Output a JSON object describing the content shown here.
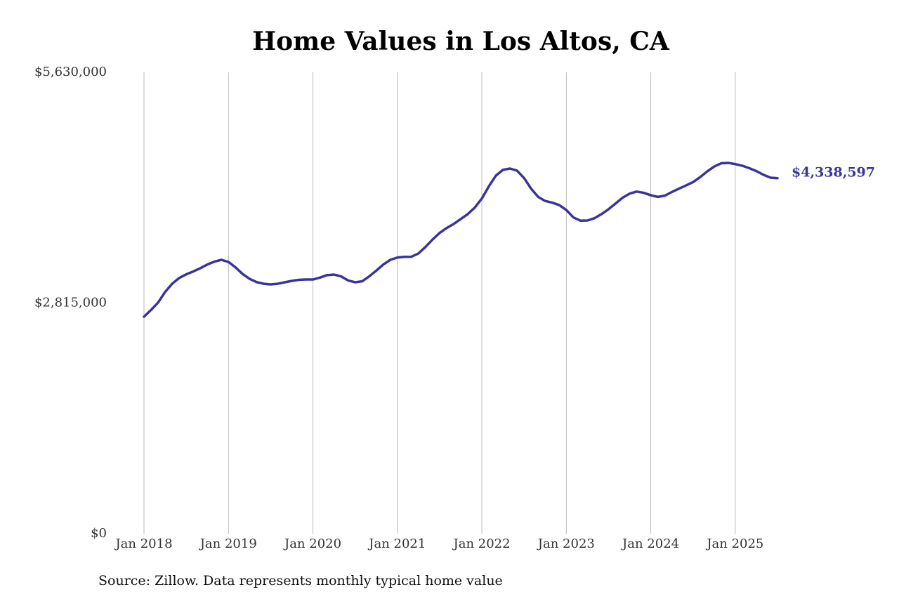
{
  "chart_data": {
    "type": "line",
    "title": "Home Values in Los Altos, CA",
    "source": "Source: Zillow. Data represents monthly typical home value",
    "x": [
      "2018-01",
      "2018-02",
      "2018-03",
      "2018-04",
      "2018-05",
      "2018-06",
      "2018-07",
      "2018-08",
      "2018-09",
      "2018-10",
      "2018-11",
      "2018-12",
      "2019-01",
      "2019-02",
      "2019-03",
      "2019-04",
      "2019-05",
      "2019-06",
      "2019-07",
      "2019-08",
      "2019-09",
      "2019-10",
      "2019-11",
      "2019-12",
      "2020-01",
      "2020-02",
      "2020-03",
      "2020-04",
      "2020-05",
      "2020-06",
      "2020-07",
      "2020-08",
      "2020-09",
      "2020-10",
      "2020-11",
      "2020-12",
      "2021-01",
      "2021-02",
      "2021-03",
      "2021-04",
      "2021-05",
      "2021-06",
      "2021-07",
      "2021-08",
      "2021-09",
      "2021-10",
      "2021-11",
      "2021-12",
      "2022-01",
      "2022-02",
      "2022-03",
      "2022-04",
      "2022-05",
      "2022-06",
      "2022-07",
      "2022-08",
      "2022-09",
      "2022-10",
      "2022-11",
      "2022-12",
      "2023-01",
      "2023-02",
      "2023-03",
      "2023-04",
      "2023-05",
      "2023-06",
      "2023-07",
      "2023-08",
      "2023-09",
      "2023-10",
      "2023-11",
      "2023-12",
      "2024-01",
      "2024-02",
      "2024-03",
      "2024-04",
      "2024-05",
      "2024-06",
      "2024-07",
      "2024-08",
      "2024-09",
      "2024-10",
      "2024-11",
      "2024-12",
      "2025-01",
      "2025-02",
      "2025-03",
      "2025-04",
      "2025-05",
      "2025-06",
      "2025-07"
    ],
    "series": [
      {
        "color": "#3a3399",
        "values": [
          2648000,
          2730000,
          2820000,
          2950000,
          3050000,
          3120000,
          3165000,
          3200000,
          3240000,
          3285000,
          3320000,
          3342000,
          3316000,
          3250000,
          3170000,
          3110000,
          3070000,
          3050000,
          3042000,
          3050000,
          3068000,
          3085000,
          3098000,
          3102000,
          3102000,
          3125000,
          3155000,
          3162000,
          3140000,
          3090000,
          3068000,
          3080000,
          3140000,
          3210000,
          3285000,
          3342000,
          3370000,
          3378000,
          3380000,
          3420000,
          3500000,
          3590000,
          3670000,
          3730000,
          3780000,
          3840000,
          3900000,
          3980000,
          4090000,
          4240000,
          4370000,
          4440000,
          4456000,
          4430000,
          4340000,
          4210000,
          4110000,
          4060000,
          4040000,
          4010000,
          3950000,
          3860000,
          3820000,
          3822000,
          3850000,
          3900000,
          3960000,
          4030000,
          4100000,
          4150000,
          4175000,
          4160000,
          4130000,
          4110000,
          4125000,
          4170000,
          4210000,
          4250000,
          4290000,
          4350000,
          4420000,
          4480000,
          4520000,
          4525000,
          4510000,
          4490000,
          4460000,
          4425000,
          4380000,
          4345000,
          4338597
        ],
        "value_labels": [
          null,
          null,
          null,
          null,
          null,
          null,
          null,
          null,
          null,
          null,
          null,
          null,
          null,
          null,
          null,
          null,
          null,
          null,
          null,
          null,
          null,
          null,
          null,
          null,
          null,
          null,
          null,
          null,
          null,
          null,
          null,
          null,
          null,
          null,
          null,
          null,
          null,
          null,
          null,
          null,
          null,
          null,
          null,
          null,
          null,
          null,
          null,
          null,
          null,
          null,
          null,
          null,
          null,
          null,
          null,
          null,
          null,
          null,
          null,
          null,
          null,
          null,
          null,
          null,
          null,
          null,
          null,
          null,
          null,
          null,
          null,
          null,
          null,
          null,
          null,
          null,
          null,
          null,
          null,
          null,
          null,
          null,
          null,
          null,
          null,
          null,
          null,
          null,
          null,
          null,
          "$4,338,597"
        ]
      }
    ],
    "xlim": [
      "2018-01",
      "2025-07"
    ],
    "xticks": [
      {
        "value": "2018-01",
        "label": "Jan 2018"
      },
      {
        "value": "2019-01",
        "label": "Jan 2019"
      },
      {
        "value": "2020-01",
        "label": "Jan 2020"
      },
      {
        "value": "2021-01",
        "label": "Jan 2021"
      },
      {
        "value": "2022-01",
        "label": "Jan 2022"
      },
      {
        "value": "2023-01",
        "label": "Jan 2023"
      },
      {
        "value": "2024-01",
        "label": "Jan 2024"
      },
      {
        "value": "2025-01",
        "label": "Jan 2025"
      }
    ],
    "ylim": [
      0,
      5630000
    ],
    "yticks": [
      {
        "value": 0,
        "label": "$0"
      },
      {
        "value": 2815000,
        "label": "$2,815,000"
      },
      {
        "value": 5630000,
        "label": "$5,630,000"
      }
    ],
    "grid": "x"
  }
}
